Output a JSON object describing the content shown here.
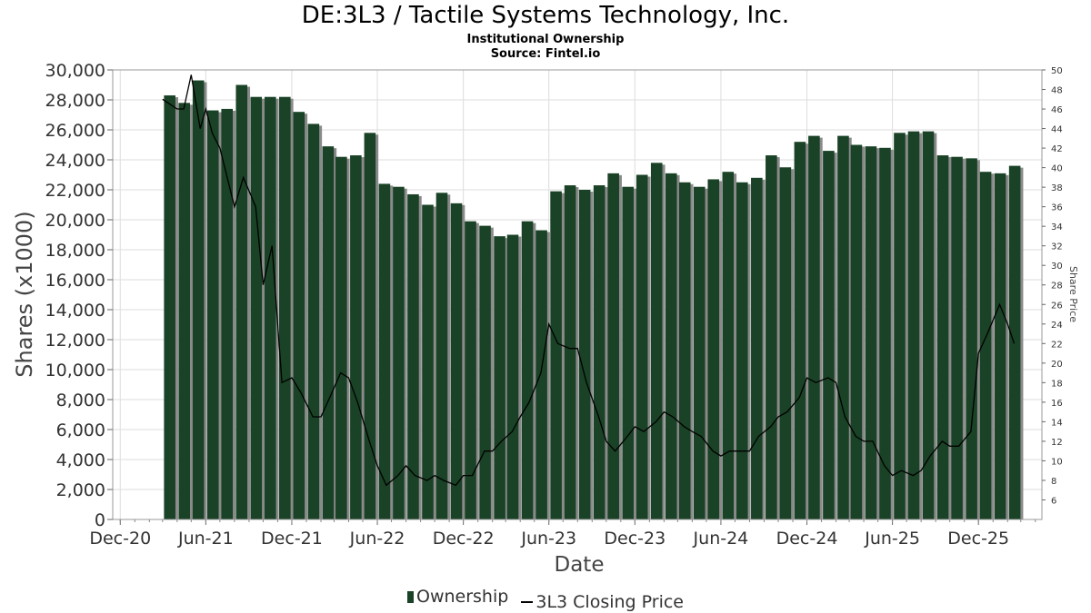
{
  "header": {
    "title": "DE:3L3 / Tactile Systems Technology, Inc.",
    "subtitle": "Institutional Ownership",
    "source": "Source: Fintel.io"
  },
  "legend": {
    "ownership_label": "Ownership",
    "price_label": "3L3 Closing Price"
  },
  "chart_data": {
    "type": "bar",
    "xlabel": "Date",
    "ylabel": "Shares (x1000)",
    "y2label": "Share Price",
    "ylim": [
      0,
      30000
    ],
    "y2lim": [
      4,
      50
    ],
    "xlim": [
      "2020-11-15",
      "2026-04-15"
    ],
    "yticks": [
      "0",
      "2,000",
      "4,000",
      "6,000",
      "8,000",
      "10,000",
      "12,000",
      "14,000",
      "16,000",
      "18,000",
      "20,000",
      "22,000",
      "24,000",
      "26,000",
      "28,000",
      "30,000"
    ],
    "y2ticks": [
      "6",
      "8",
      "10",
      "12",
      "14",
      "16",
      "18",
      "20",
      "22",
      "24",
      "26",
      "28",
      "30",
      "32",
      "34",
      "36",
      "38",
      "40",
      "42",
      "44",
      "46",
      "48",
      "50"
    ],
    "xticks": [
      {
        "date": "2020-12-01",
        "label": "Dec-20"
      },
      {
        "date": "2021-06-01",
        "label": "Jun-21"
      },
      {
        "date": "2021-12-01",
        "label": "Dec-21"
      },
      {
        "date": "2022-06-01",
        "label": "Jun-22"
      },
      {
        "date": "2022-12-01",
        "label": "Dec-22"
      },
      {
        "date": "2023-06-01",
        "label": "Jun-23"
      },
      {
        "date": "2023-12-01",
        "label": "Dec-23"
      },
      {
        "date": "2024-06-01",
        "label": "Jun-24"
      },
      {
        "date": "2024-12-01",
        "label": "Dec-24"
      },
      {
        "date": "2025-06-01",
        "label": "Jun-25"
      },
      {
        "date": "2025-12-01",
        "label": "Dec-25"
      }
    ],
    "grid": true,
    "legend_position": "bottom",
    "colors": {
      "bar": "#1a4226",
      "bar_shadow": "#8a8a8a",
      "line": "#000000",
      "grid": "#dddddd"
    },
    "series": [
      {
        "name": "Ownership",
        "type": "bar",
        "points": [
          [
            "2021-03-01",
            28300
          ],
          [
            "2021-04-01",
            27800
          ],
          [
            "2021-05-01",
            29300
          ],
          [
            "2021-06-01",
            27300
          ],
          [
            "2021-07-01",
            27400
          ],
          [
            "2021-08-01",
            29000
          ],
          [
            "2021-09-01",
            28200
          ],
          [
            "2021-10-01",
            28200
          ],
          [
            "2021-11-01",
            28200
          ],
          [
            "2021-12-01",
            27200
          ],
          [
            "2022-01-01",
            26400
          ],
          [
            "2022-02-01",
            24900
          ],
          [
            "2022-03-01",
            24200
          ],
          [
            "2022-04-01",
            24300
          ],
          [
            "2022-05-01",
            25800
          ],
          [
            "2022-06-01",
            22400
          ],
          [
            "2022-07-01",
            22200
          ],
          [
            "2022-08-01",
            21700
          ],
          [
            "2022-09-01",
            21000
          ],
          [
            "2022-10-01",
            21800
          ],
          [
            "2022-11-01",
            21100
          ],
          [
            "2022-12-01",
            19900
          ],
          [
            "2023-01-01",
            19600
          ],
          [
            "2023-02-01",
            18900
          ],
          [
            "2023-03-01",
            19000
          ],
          [
            "2023-04-01",
            19900
          ],
          [
            "2023-05-01",
            19300
          ],
          [
            "2023-06-01",
            21900
          ],
          [
            "2023-07-01",
            22300
          ],
          [
            "2023-08-01",
            22000
          ],
          [
            "2023-09-01",
            22300
          ],
          [
            "2023-10-01",
            23100
          ],
          [
            "2023-11-01",
            22200
          ],
          [
            "2023-12-01",
            23000
          ],
          [
            "2024-01-01",
            23800
          ],
          [
            "2024-02-01",
            23100
          ],
          [
            "2024-03-01",
            22500
          ],
          [
            "2024-04-01",
            22200
          ],
          [
            "2024-05-01",
            22700
          ],
          [
            "2024-06-01",
            23200
          ],
          [
            "2024-07-01",
            22500
          ],
          [
            "2024-08-01",
            22800
          ],
          [
            "2024-09-01",
            24300
          ],
          [
            "2024-10-01",
            23500
          ],
          [
            "2024-11-01",
            25200
          ],
          [
            "2024-12-01",
            25600
          ],
          [
            "2025-01-01",
            24600
          ],
          [
            "2025-02-01",
            25600
          ],
          [
            "2025-03-01",
            25000
          ],
          [
            "2025-04-01",
            24900
          ],
          [
            "2025-05-01",
            24800
          ],
          [
            "2025-06-01",
            25800
          ],
          [
            "2025-07-01",
            25900
          ],
          [
            "2025-08-01",
            25900
          ],
          [
            "2025-09-01",
            24300
          ],
          [
            "2025-10-01",
            24200
          ],
          [
            "2025-11-01",
            24100
          ],
          [
            "2025-12-01",
            23200
          ],
          [
            "2026-01-01",
            23100
          ],
          [
            "2026-02-01",
            23600
          ]
        ]
      },
      {
        "name": "3L3 Closing Price",
        "type": "line",
        "axis": "right",
        "points": [
          [
            "2021-03-01",
            47
          ],
          [
            "2021-04-01",
            46
          ],
          [
            "2021-04-15",
            46
          ],
          [
            "2021-05-01",
            49.5
          ],
          [
            "2021-05-20",
            44
          ],
          [
            "2021-06-01",
            46
          ],
          [
            "2021-06-15",
            43.5
          ],
          [
            "2021-07-01",
            42
          ],
          [
            "2021-08-01",
            36
          ],
          [
            "2021-08-20",
            39
          ],
          [
            "2021-09-15",
            36
          ],
          [
            "2021-10-01",
            28
          ],
          [
            "2021-10-20",
            32
          ],
          [
            "2021-11-10",
            18
          ],
          [
            "2021-12-01",
            18.5
          ],
          [
            "2021-12-20",
            17
          ],
          [
            "2022-01-15",
            14.5
          ],
          [
            "2022-02-01",
            14.5
          ],
          [
            "2022-02-20",
            16.5
          ],
          [
            "2022-03-15",
            19
          ],
          [
            "2022-04-01",
            18.5
          ],
          [
            "2022-04-20",
            16
          ],
          [
            "2022-05-15",
            12
          ],
          [
            "2022-06-01",
            9.5
          ],
          [
            "2022-06-20",
            7.5
          ],
          [
            "2022-07-15",
            8.5
          ],
          [
            "2022-08-01",
            9.5
          ],
          [
            "2022-08-20",
            8.5
          ],
          [
            "2022-09-15",
            8
          ],
          [
            "2022-10-01",
            8.5
          ],
          [
            "2022-10-20",
            8
          ],
          [
            "2022-11-15",
            7.5
          ],
          [
            "2022-12-01",
            8.5
          ],
          [
            "2022-12-20",
            8.5
          ],
          [
            "2023-01-15",
            11
          ],
          [
            "2023-02-01",
            11
          ],
          [
            "2023-02-20",
            12
          ],
          [
            "2023-03-15",
            13
          ],
          [
            "2023-04-01",
            14.5
          ],
          [
            "2023-04-20",
            16
          ],
          [
            "2023-05-15",
            19
          ],
          [
            "2023-06-01",
            24
          ],
          [
            "2023-06-20",
            22
          ],
          [
            "2023-07-15",
            21.5
          ],
          [
            "2023-08-01",
            21.5
          ],
          [
            "2023-08-20",
            18
          ],
          [
            "2023-09-15",
            14.5
          ],
          [
            "2023-10-01",
            12
          ],
          [
            "2023-10-20",
            11
          ],
          [
            "2023-11-15",
            12.5
          ],
          [
            "2023-12-01",
            13.5
          ],
          [
            "2023-12-20",
            13
          ],
          [
            "2024-01-15",
            14
          ],
          [
            "2024-02-01",
            15
          ],
          [
            "2024-02-20",
            14.5
          ],
          [
            "2024-03-15",
            13.5
          ],
          [
            "2024-04-01",
            13
          ],
          [
            "2024-04-20",
            12.5
          ],
          [
            "2024-05-15",
            11
          ],
          [
            "2024-06-01",
            10.5
          ],
          [
            "2024-06-20",
            11
          ],
          [
            "2024-07-15",
            11
          ],
          [
            "2024-08-01",
            11
          ],
          [
            "2024-08-20",
            12.5
          ],
          [
            "2024-09-15",
            13.5
          ],
          [
            "2024-10-01",
            14.5
          ],
          [
            "2024-10-20",
            15
          ],
          [
            "2024-11-15",
            16.5
          ],
          [
            "2024-12-01",
            18.5
          ],
          [
            "2024-12-20",
            18
          ],
          [
            "2025-01-15",
            18.5
          ],
          [
            "2025-02-01",
            18
          ],
          [
            "2025-02-20",
            14.5
          ],
          [
            "2025-03-15",
            12.5
          ],
          [
            "2025-04-01",
            12
          ],
          [
            "2025-04-20",
            12
          ],
          [
            "2025-05-15",
            9.5
          ],
          [
            "2025-06-01",
            8.5
          ],
          [
            "2025-06-20",
            9
          ],
          [
            "2025-07-15",
            8.5
          ],
          [
            "2025-08-01",
            9
          ],
          [
            "2025-08-20",
            10.5
          ],
          [
            "2025-09-15",
            12
          ],
          [
            "2025-10-01",
            11.5
          ],
          [
            "2025-10-20",
            11.5
          ],
          [
            "2025-11-15",
            13
          ],
          [
            "2025-12-01",
            21
          ],
          [
            "2025-12-20",
            23
          ],
          [
            "2026-01-15",
            26
          ],
          [
            "2026-02-01",
            24
          ],
          [
            "2026-02-15",
            22
          ]
        ]
      }
    ]
  }
}
